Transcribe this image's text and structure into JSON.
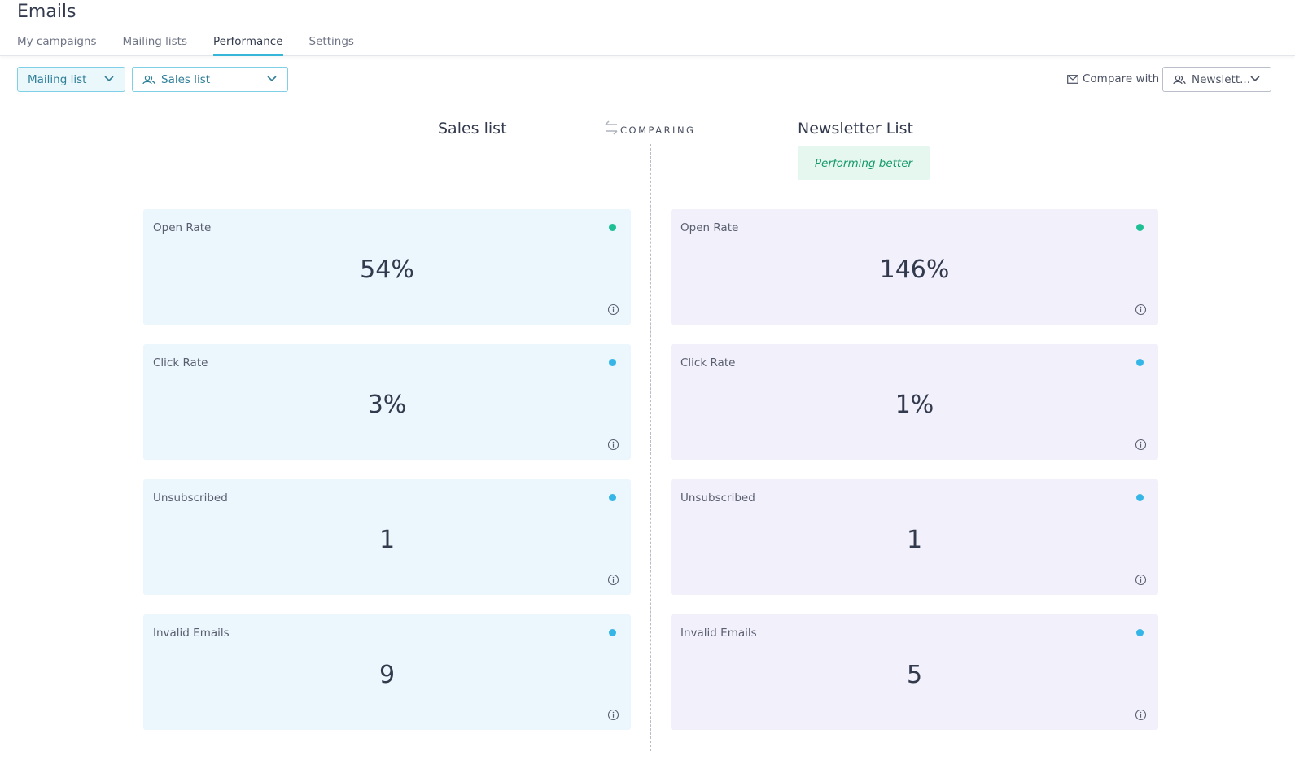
{
  "header": {
    "title": "Emails",
    "tabs": [
      {
        "label": "My campaigns",
        "active": false
      },
      {
        "label": "Mailing lists",
        "active": false
      },
      {
        "label": "Performance",
        "active": true
      },
      {
        "label": "Settings",
        "active": false
      }
    ]
  },
  "filters": {
    "type_select": {
      "value": "Mailing list"
    },
    "list_select": {
      "value": "Sales list",
      "icon": "users-icon"
    },
    "compare_label": "Compare with",
    "compare_icon": "envelope-icon",
    "compare_select": {
      "value": "Newslett...",
      "icon": "users-icon"
    }
  },
  "comparison": {
    "left_title": "Sales list",
    "right_title": "Newsletter List",
    "comparing_label": "COMPARING",
    "badge": "Performing better"
  },
  "metrics": {
    "left": [
      {
        "label": "Open Rate",
        "value": "54%",
        "dot_color": "#1fbf96"
      },
      {
        "label": "Click Rate",
        "value": "3%",
        "dot_color": "#36b6e6"
      },
      {
        "label": "Unsubscribed",
        "value": "1",
        "dot_color": "#36b6e6"
      },
      {
        "label": "Invalid Emails",
        "value": "9",
        "dot_color": "#36b6e6"
      }
    ],
    "right": [
      {
        "label": "Open Rate",
        "value": "146%",
        "dot_color": "#1fbf96"
      },
      {
        "label": "Click Rate",
        "value": "1%",
        "dot_color": "#36b6e6"
      },
      {
        "label": "Unsubscribed",
        "value": "1",
        "dot_color": "#36b6e6"
      },
      {
        "label": "Invalid Emails",
        "value": "5",
        "dot_color": "#36b6e6"
      }
    ]
  },
  "colors": {
    "accent": "#36b6d9",
    "left_card_bg": "#ebf6fd",
    "right_card_bg": "#f2f0fb",
    "badge_bg": "#e6f7f0",
    "badge_text": "#169a6b"
  }
}
